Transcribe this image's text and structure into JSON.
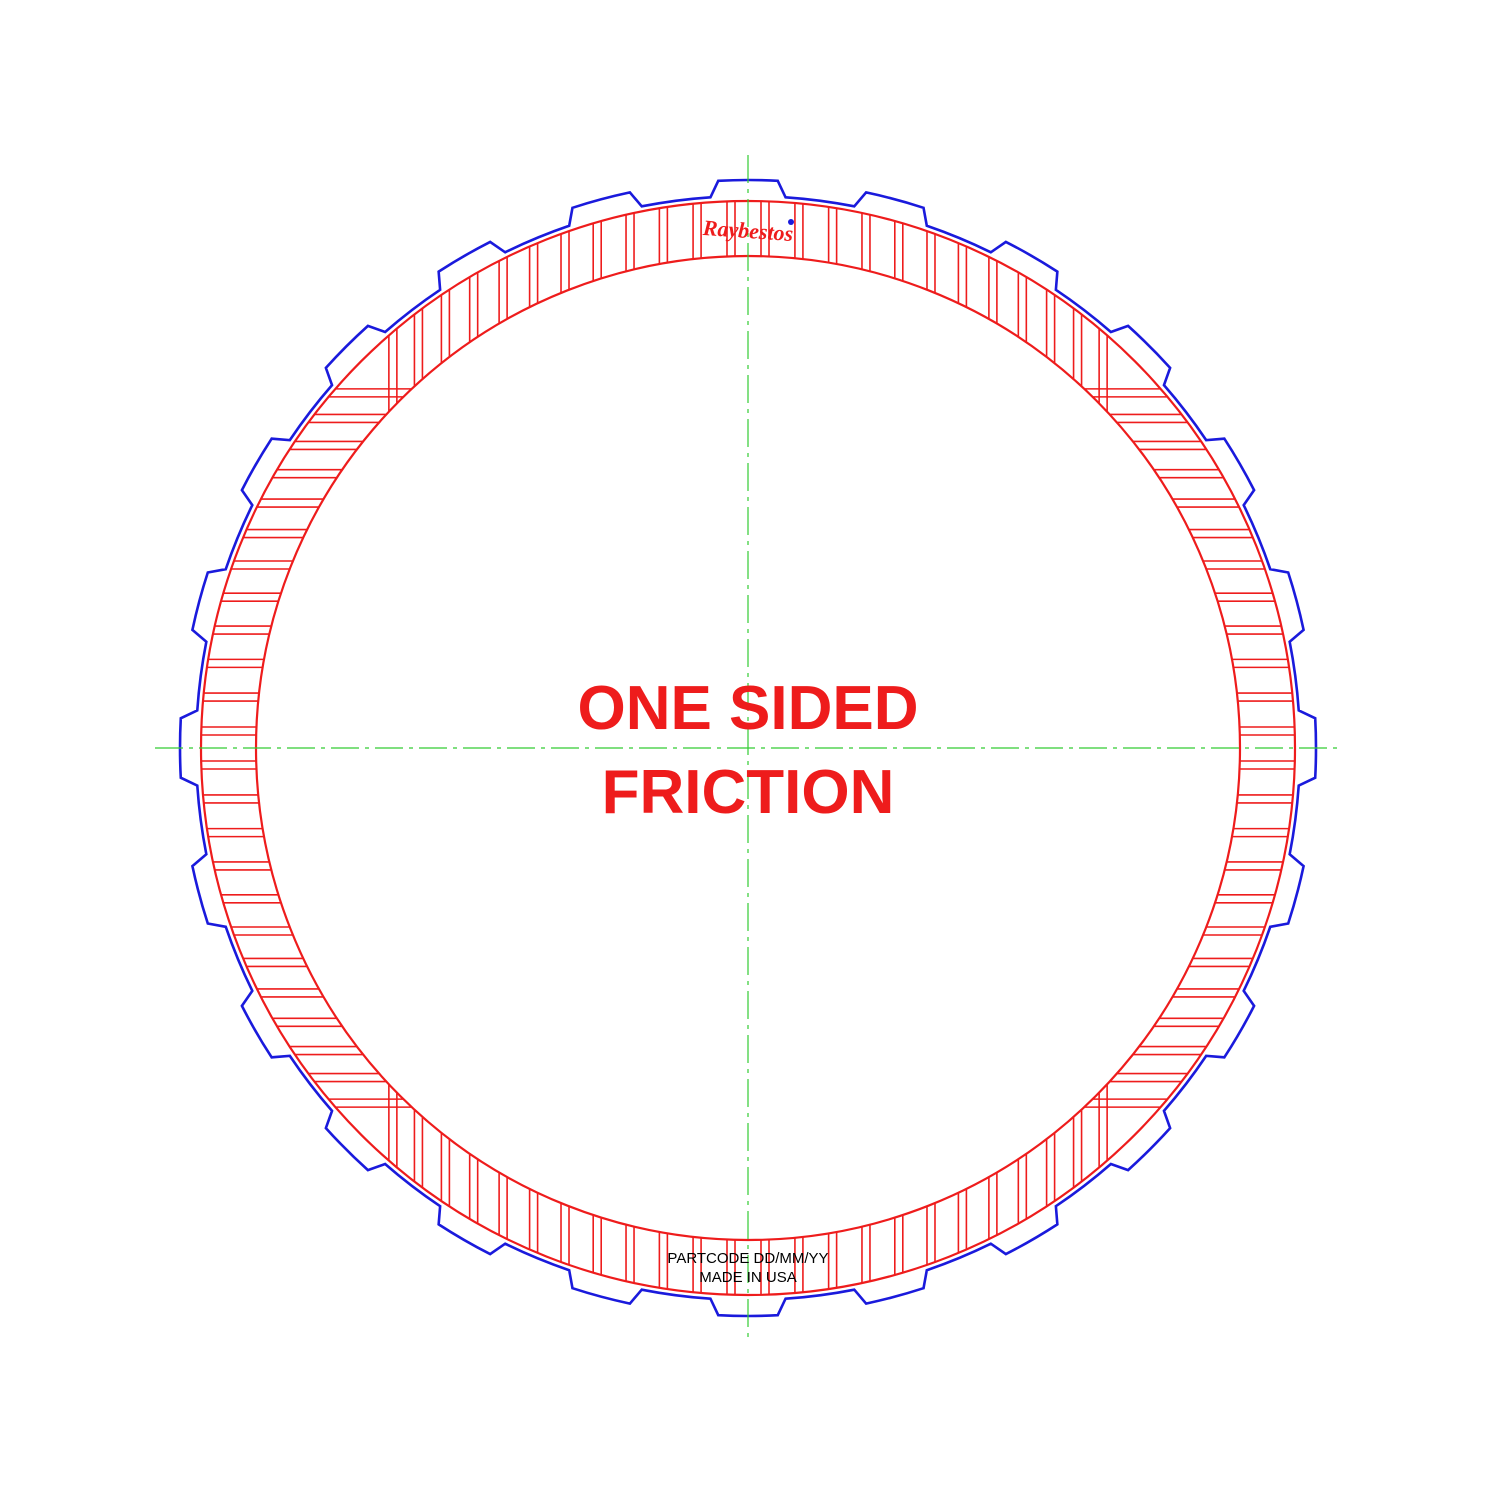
{
  "diagram": {
    "title_line1": "ONE SIDED",
    "title_line2": "FRICTION",
    "stamp_line1": "PARTCODE DD/MM/YY",
    "stamp_line2": "MADE IN USA",
    "logo_text": "Raybestos",
    "outer_teeth_count": 24,
    "friction_segment_count": 96
  },
  "colors": {
    "background": "#ffffff",
    "steel_outline": "#1a1adc",
    "friction": "#ee1c1c",
    "centerline": "#33cc33",
    "stamp_text": "#000000"
  }
}
